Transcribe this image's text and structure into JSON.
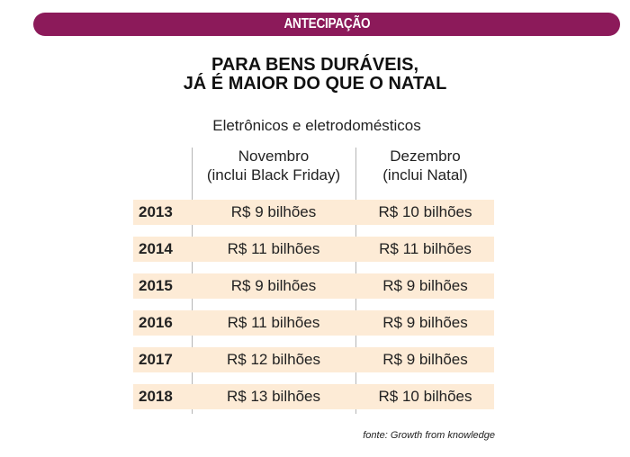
{
  "banner": {
    "label": "ANTECIPAÇÃO"
  },
  "headline": {
    "line1": "PARA BENS DURÁVEIS,",
    "line2": "JÁ É MAIOR DO QUE O NATAL"
  },
  "subtitle": "Eletrônicos e eletrodomésticos",
  "table": {
    "columns": [
      {
        "line1": "Novembro",
        "line2": "(inclui Black Friday)"
      },
      {
        "line1": "Dezembro",
        "line2": "(inclui Natal)"
      }
    ],
    "rows": [
      {
        "year": "2013",
        "november": "R$ 9 bilhões",
        "december": "R$ 10 bilhões"
      },
      {
        "year": "2014",
        "november": "R$ 11 bilhões",
        "december": "R$ 11 bilhões"
      },
      {
        "year": "2015",
        "november": "R$ 9 bilhões",
        "december": "R$ 9 bilhões"
      },
      {
        "year": "2016",
        "november": "R$ 11 bilhões",
        "december": "R$ 9 bilhões"
      },
      {
        "year": "2017",
        "november": "R$ 12 bilhões",
        "december": "R$ 9 bilhões"
      },
      {
        "year": "2018",
        "november": "R$ 13 bilhões",
        "december": "R$ 10 bilhões"
      }
    ]
  },
  "source": "fonte: Growth from knowledge",
  "colors": {
    "banner": "#8c1a5a",
    "row_band": "#fdebd6",
    "divider": "#b5b5b5"
  }
}
